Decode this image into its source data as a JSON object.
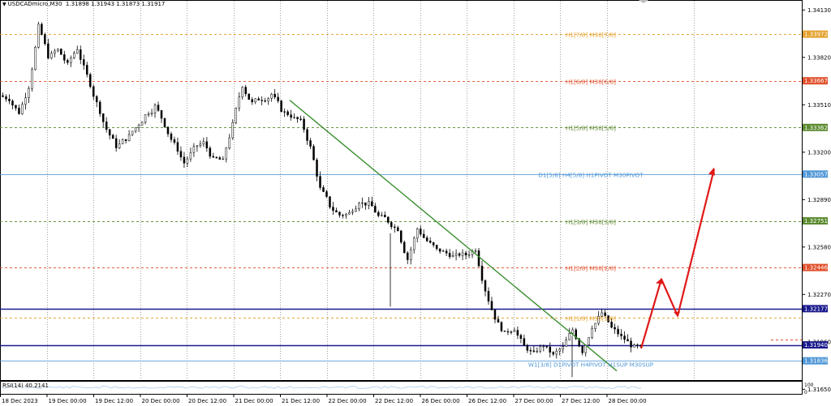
{
  "header": {
    "symbol": "USDCADmicro,M30",
    "ohlc": "1.31898 1.31943 1.31873 1.31917"
  },
  "rsi": {
    "label": "RSI(14) 40.2141",
    "ticks": [
      "100",
      "0"
    ]
  },
  "colors": {
    "grid": "#8c8c8c",
    "green_level": "#5b8a2f",
    "orange_level": "#e3a02a",
    "red_level": "#e0502c",
    "blue_level": "#4f97d6",
    "navy_line": "#1a1a8e",
    "trendline": "#3a8f2f",
    "arrow": "#e01818",
    "candle": "#000000"
  },
  "chart_data": {
    "type": "candlestick",
    "title": "USDCADmicro,M30",
    "xlabel": "",
    "ylabel": "",
    "ylim": [
      1.3171,
      1.3419
    ],
    "grid": true,
    "x_ticks": [
      "18 Dec 2023",
      "19 Dec 00:00",
      "19 Dec 12:00",
      "20 Dec 00:00",
      "20 Dec 12:00",
      "21 Dec 00:00",
      "21 Dec 12:00",
      "22 Dec 00:00",
      "22 Dec 12:00",
      "26 Dec 00:00",
      "26 Dec 12:00",
      "27 Dec 00:00",
      "27 Dec 12:00",
      "28 Dec 00:00"
    ],
    "y_ticks": [
      "1.34130",
      "1.33820",
      "1.33510",
      "1.33200",
      "1.32890",
      "1.32580",
      "1.32270",
      "1.31960",
      "1.31650"
    ],
    "price_tags": [
      {
        "value": "1.33972",
        "color": "#e3a02a"
      },
      {
        "value": "1.33667",
        "color": "#e0502c"
      },
      {
        "value": "1.33362",
        "color": "#5b8a2f"
      },
      {
        "value": "1.33057",
        "color": "#4f97d6"
      },
      {
        "value": "1.32751",
        "color": "#5b8a2f"
      },
      {
        "value": "1.32446",
        "color": "#e0502c"
      },
      {
        "value": "1.32177",
        "color": "#1a1a8e"
      },
      {
        "value": "1.31940",
        "color": "#1a1a8e"
      },
      {
        "value": "1.31836",
        "color": "#4f97d6"
      }
    ],
    "levels": [
      {
        "label": "H1[7/8] M30[7/8]",
        "price": 1.33972,
        "color": "#e3a02a"
      },
      {
        "label": "H1[6/8] M30[6/8]",
        "price": 1.33667,
        "color": "#e0502c"
      },
      {
        "label": "H1[5/8] M30[5/8]",
        "price": 1.33362,
        "color": "#5b8a2f"
      },
      {
        "label": "D1[5/8] H4[5/8] H1PIVOT M30PIVOT",
        "price": 1.33057,
        "color": "#4f97d6"
      },
      {
        "label": "H1[3/8] M30[3/8]",
        "price": 1.32751,
        "color": "#5b8a2f"
      },
      {
        "label": "H1[2/8] M30[2/8]",
        "price": 1.32446,
        "color": "#e0502c"
      },
      {
        "label": "H1[1/8] M30[1/8]",
        "price": 1.3212,
        "color": "#e3a02a"
      },
      {
        "label": "W1[3/8] D1PIVOT H4PIVOT H1SUP M30SUP",
        "price": 1.31836,
        "color": "#4f97d6"
      }
    ],
    "horizontal_lines": [
      1.32177,
      1.3194
    ],
    "trendline": {
      "from": [
        "21 Dec 12:00",
        1.3354
      ],
      "to": [
        "28 Dec 00:00",
        1.3177
      ]
    },
    "projection": [
      1.31917,
      1.3237,
      1.3213,
      1.3309
    ],
    "close_path": [
      1.3355,
      1.3346,
      1.3363,
      1.3402,
      1.3383,
      1.3387,
      1.3377,
      1.3388,
      1.337,
      1.3352,
      1.3335,
      1.3324,
      1.3329,
      1.3336,
      1.3344,
      1.335,
      1.3338,
      1.3325,
      1.3313,
      1.3322,
      1.3326,
      1.3315,
      1.3314,
      1.3338,
      1.3364,
      1.3352,
      1.3355,
      1.3358,
      1.3348,
      1.3344,
      1.334,
      1.3323,
      1.3296,
      1.3285,
      1.3279,
      1.328,
      1.3288,
      1.3286,
      1.3278,
      1.3275,
      1.327,
      1.325,
      1.327,
      1.3262,
      1.3256,
      1.3254,
      1.3252,
      1.3253,
      1.3257,
      1.323,
      1.3212,
      1.3201,
      1.3205,
      1.3193,
      1.3188,
      1.3194,
      1.3187,
      1.3192,
      1.3204,
      1.319,
      1.3206,
      1.3215,
      1.3205,
      1.3199,
      1.3194,
      1.31917
    ]
  }
}
